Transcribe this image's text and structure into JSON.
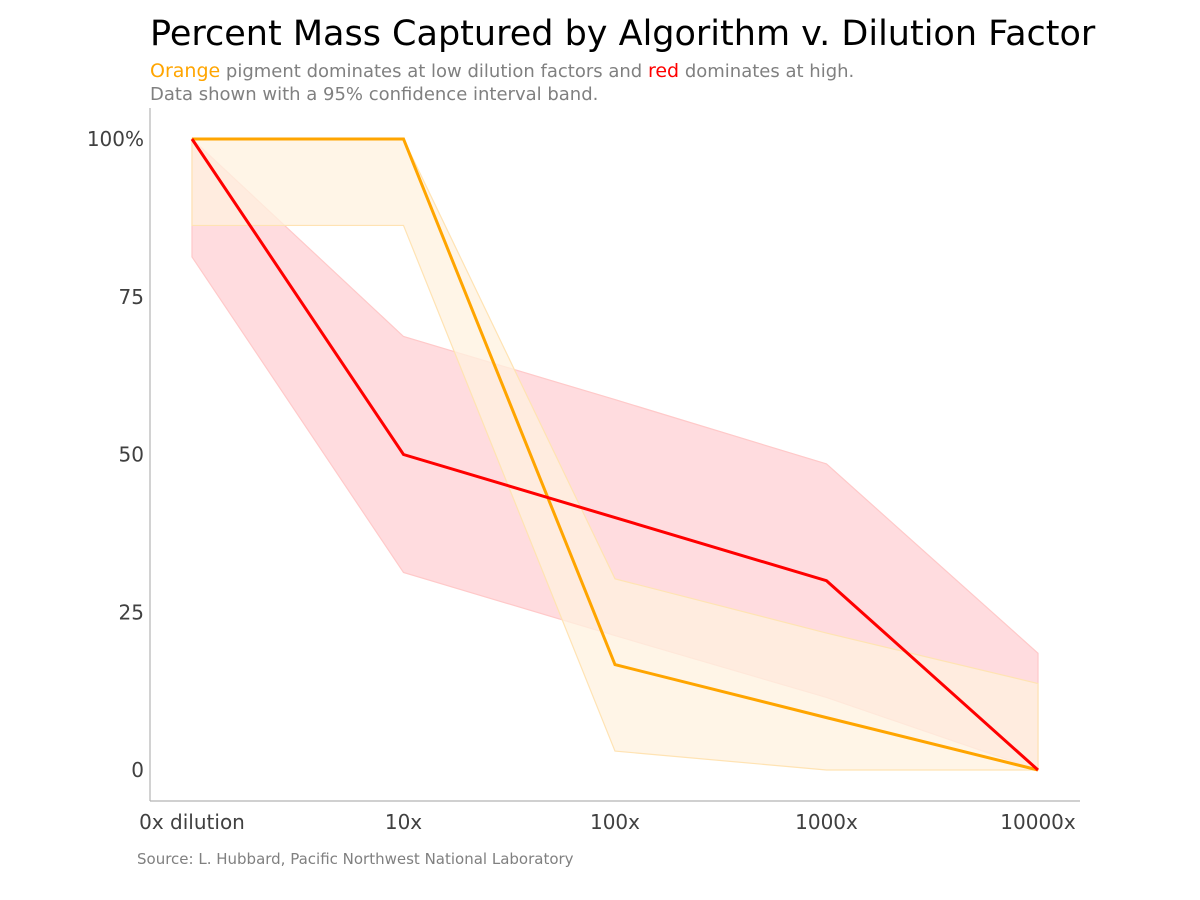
{
  "chart": {
    "title": "Percent Mass Captured by Algorithm v. Dilution Factor",
    "subtitle": {
      "highlight1": "Orange",
      "text1": " pigment dominates at low dilution factors and ",
      "highlight2": "red",
      "text2": " dominates at high.",
      "line2": "Data shown with a 95% confidence interval band."
    },
    "source": "Source: L. Hubbard, Pacific Northwest National Laboratory"
  },
  "colors": {
    "orange": "#FFA500",
    "red": "#FF0000",
    "orange_band": "#FFF2DF",
    "red_band": "#FFDCDF",
    "overlap_band": "#FFD5C5",
    "axis": "#b3b3b3",
    "tick_text": "#404040",
    "muted_text": "#808080"
  },
  "chart_data": {
    "type": "line",
    "title": "Percent Mass Captured by Algorithm v. Dilution Factor",
    "xlabel": "",
    "ylabel": "",
    "categories": [
      "0x dilution",
      "10x",
      "100x",
      "1000x",
      "10000x"
    ],
    "y_ticks": [
      0,
      25,
      50,
      75,
      100
    ],
    "y_tick_labels": [
      "0",
      "25",
      "50",
      "75",
      "100%"
    ],
    "ylim": [
      -5,
      105
    ],
    "grid": false,
    "legend": "none",
    "series": [
      {
        "name": "Orange",
        "color": "#FFA500",
        "values": [
          100,
          100,
          16.7,
          8.3,
          0
        ],
        "ci_lower": [
          86.3,
          86.3,
          3.0,
          0,
          0
        ],
        "ci_upper": [
          100,
          100,
          30.3,
          21.7,
          13.7
        ]
      },
      {
        "name": "red",
        "color": "#FF0000",
        "values": [
          100,
          50,
          40,
          30,
          0
        ],
        "ci_lower": [
          81.3,
          31.3,
          21.3,
          11.5,
          0
        ],
        "ci_upper": [
          100,
          68.7,
          58.7,
          48.5,
          18.5
        ]
      }
    ]
  }
}
